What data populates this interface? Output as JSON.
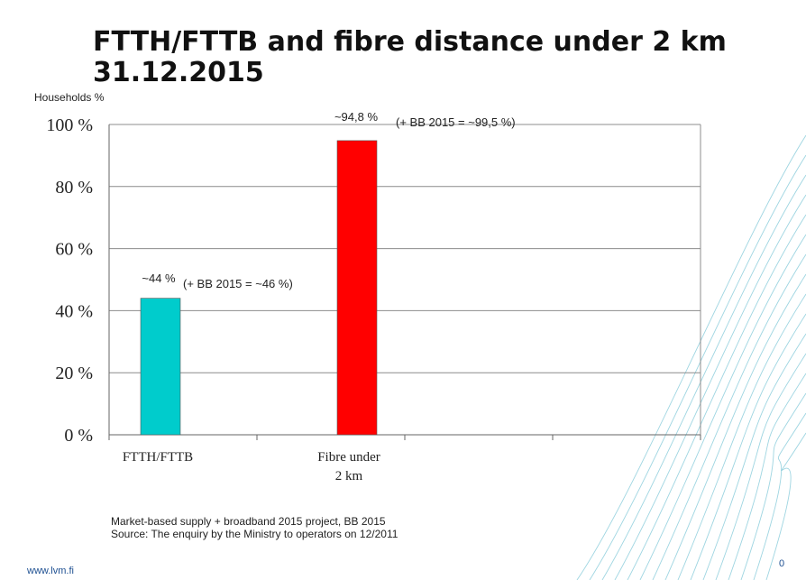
{
  "slide": {
    "title_line1": "FTTH/FTTB and fibre distance under 2 km",
    "title_line2": "31.12.2015",
    "unit_label": "Households %",
    "note_line1": "Market-based supply + broadband 2015 project, BB 2015",
    "note_line2": "Source: The enquiry by the Ministry to operators on 12/2011",
    "footer_url": "www.lvm.fi",
    "page_number": "0"
  },
  "chart_data": {
    "type": "bar",
    "categories": [
      "FTTH/FTTB",
      "Fibre under\n2 km",
      "",
      ""
    ],
    "values": [
      44,
      94.8,
      null,
      null
    ],
    "bar_colors": [
      "#00cccc",
      "#ff0000",
      null,
      null
    ],
    "data_labels": [
      "~44 %",
      "~94,8 %",
      "",
      ""
    ],
    "annotations": [
      "(+ BB 2015 = ~46 %)",
      "(+ BB 2015 = ~99,5 %)"
    ],
    "ylim": [
      0,
      100
    ],
    "yticks": [
      0,
      20,
      40,
      60,
      80,
      100
    ],
    "ytick_labels": [
      "0 %",
      "20 %",
      "40 %",
      "60 %",
      "80 %",
      "100 %"
    ],
    "grid": true
  },
  "colors": {
    "gridline": "#8c8c8c",
    "axis": "#666666",
    "decor": "#4fb3c9",
    "footer": "#1d4f91"
  }
}
